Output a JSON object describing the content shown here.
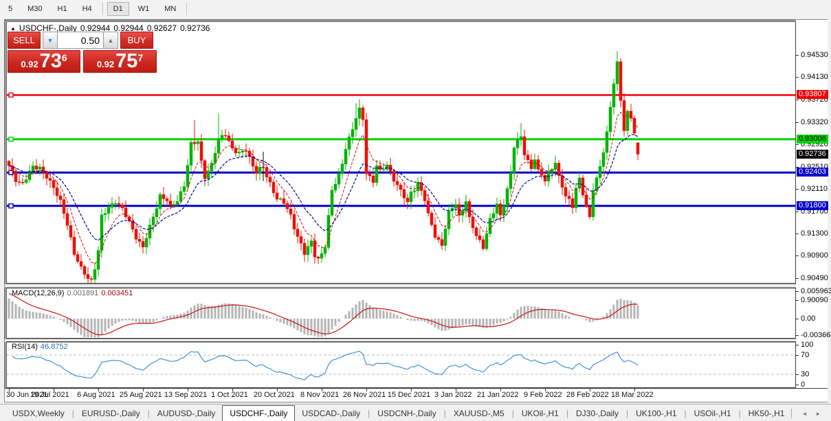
{
  "toolbar": {
    "items": [
      "5",
      "M30",
      "H1",
      "H4",
      "D1",
      "W1",
      "MN"
    ],
    "active": "D1"
  },
  "window": {
    "title": {
      "collapse_icon": "▲",
      "symbol": "USDCHF-,Daily",
      "open": "0.92944",
      "high": "0.92944",
      "low": "0.92627",
      "close": "0.92736"
    },
    "trade_panel": {
      "sell_label": "SELL",
      "buy_label": "BUY",
      "volume": "0.50",
      "down_arrow": "▼",
      "up_arrow": "▲",
      "sell_price_prefix": "0.92",
      "sell_price_big": "73",
      "sell_price_sup": "6",
      "buy_price_prefix": "0.92",
      "buy_price_big": "75",
      "buy_price_sup": "7"
    }
  },
  "chart_data": {
    "type": "candlestick",
    "symbol": "USDCHF-",
    "timeframe": "Daily",
    "last_candle": {
      "open": 0.92944,
      "high": 0.92944,
      "low": 0.92627,
      "close": 0.92736
    },
    "candle_count": 184,
    "candles_per_x_tick": 13,
    "x_ticks": [
      "30 Jun 2021",
      "19 Jul 2021",
      "6 Aug 2021",
      "25 Aug 2021",
      "13 Sep 2021",
      "1 Oct 2021",
      "20 Oct 2021",
      "8 Nov 2021",
      "26 Nov 2021",
      "15 Dec 2021",
      "3 Jan 2022",
      "21 Jan 2022",
      "9 Feb 2022",
      "28 Feb 2022",
      "18 Mar 2022"
    ],
    "y_ticks": [
      0.9453,
      0.9413,
      0.9372,
      0.9332,
      0.9292,
      0.9251,
      0.9211,
      0.917,
      0.913,
      0.909,
      0.9049,
      0.9009
    ],
    "y_tick_labels": [
      "0.94530",
      "0.94130",
      "0.93720",
      "0.93320",
      "0.92920",
      "0.92510",
      "0.92110",
      "0.91700",
      "0.91300",
      "0.90900",
      "0.90490",
      "0.90090"
    ],
    "levels": [
      {
        "price": 0.93807,
        "label": "0.93807",
        "color": "#ee0000",
        "text_color": "#ffffff",
        "width": 2.5
      },
      {
        "price": 0.93006,
        "label": "0.93006",
        "color": "#00d200",
        "text_color": "#000000",
        "width": 3
      },
      {
        "price": 0.92403,
        "label": "0.92403",
        "color": "#0000cc",
        "text_color": "#ffffff",
        "width": 3
      },
      {
        "price": 0.918,
        "label": "0.91800",
        "color": "#0000cc",
        "text_color": "#ffffff",
        "width": 3
      }
    ],
    "current_price": {
      "value": 0.92736,
      "label": "0.92736",
      "color": "#000000",
      "text_color": "#ffffff"
    },
    "up_color": "#00b400",
    "down_color": "#ee1005",
    "ma_fast": {
      "period": 7,
      "color": "#cc1111"
    },
    "ma_slow": {
      "period": 16,
      "color": "#000099"
    },
    "price_path": [
      [
        0,
        0.925
      ],
      [
        2,
        0.9228
      ],
      [
        4,
        0.9222
      ],
      [
        7,
        0.9248
      ],
      [
        9,
        0.925
      ],
      [
        11,
        0.9235
      ],
      [
        13,
        0.921
      ],
      [
        15,
        0.9188
      ],
      [
        17,
        0.915
      ],
      [
        19,
        0.9092
      ],
      [
        21,
        0.9065
      ],
      [
        23,
        0.9052
      ],
      [
        24,
        0.9046
      ],
      [
        25,
        0.9068
      ],
      [
        26,
        0.9098
      ],
      [
        27,
        0.9158
      ],
      [
        29,
        0.9178
      ],
      [
        31,
        0.919
      ],
      [
        33,
        0.9172
      ],
      [
        35,
        0.915
      ],
      [
        37,
        0.9126
      ],
      [
        39,
        0.9104
      ],
      [
        41,
        0.914
      ],
      [
        43,
        0.918
      ],
      [
        44,
        0.92
      ],
      [
        46,
        0.919
      ],
      [
        47,
        0.9175
      ],
      [
        49,
        0.919
      ],
      [
        51,
        0.922
      ],
      [
        53,
        0.929
      ],
      [
        55,
        0.9295
      ],
      [
        56,
        0.926
      ],
      [
        57,
        0.9235
      ],
      [
        59,
        0.9255
      ],
      [
        61,
        0.9298
      ],
      [
        63,
        0.9312
      ],
      [
        65,
        0.9285
      ],
      [
        67,
        0.9272
      ],
      [
        69,
        0.9282
      ],
      [
        71,
        0.9255
      ],
      [
        72,
        0.9243
      ],
      [
        74,
        0.9248
      ],
      [
        75,
        0.9232
      ],
      [
        77,
        0.9208
      ],
      [
        78,
        0.9196
      ],
      [
        80,
        0.9185
      ],
      [
        82,
        0.916
      ],
      [
        83,
        0.9142
      ],
      [
        85,
        0.9112
      ],
      [
        86,
        0.9095
      ],
      [
        88,
        0.9112
      ],
      [
        89,
        0.909
      ],
      [
        90,
        0.9085
      ],
      [
        91,
        0.9095
      ],
      [
        92,
        0.911
      ],
      [
        93,
        0.916
      ],
      [
        94,
        0.9205
      ],
      [
        96,
        0.9235
      ],
      [
        97,
        0.9258
      ],
      [
        98,
        0.9288
      ],
      [
        100,
        0.9318
      ],
      [
        101,
        0.9338
      ],
      [
        102,
        0.9352
      ],
      [
        103,
        0.9338
      ],
      [
        104,
        0.9242
      ],
      [
        106,
        0.9225
      ],
      [
        107,
        0.9252
      ],
      [
        108,
        0.924
      ],
      [
        110,
        0.9255
      ],
      [
        112,
        0.923
      ],
      [
        114,
        0.9205
      ],
      [
        116,
        0.9185
      ],
      [
        117,
        0.9205
      ],
      [
        119,
        0.9222
      ],
      [
        121,
        0.919
      ],
      [
        122,
        0.9162
      ],
      [
        124,
        0.9128
      ],
      [
        126,
        0.911
      ],
      [
        127,
        0.914
      ],
      [
        128,
        0.9165
      ],
      [
        130,
        0.9185
      ],
      [
        131,
        0.9162
      ],
      [
        133,
        0.919
      ],
      [
        134,
        0.9155
      ],
      [
        136,
        0.9125
      ],
      [
        138,
        0.9108
      ],
      [
        139,
        0.9132
      ],
      [
        140,
        0.9155
      ],
      [
        142,
        0.918
      ],
      [
        143,
        0.916
      ],
      [
        144,
        0.9185
      ],
      [
        146,
        0.924
      ],
      [
        147,
        0.9288
      ],
      [
        149,
        0.9302
      ],
      [
        150,
        0.9275
      ],
      [
        152,
        0.925
      ],
      [
        153,
        0.9268
      ],
      [
        154,
        0.9242
      ],
      [
        156,
        0.9225
      ],
      [
        158,
        0.925
      ],
      [
        159,
        0.9262
      ],
      [
        160,
        0.9232
      ],
      [
        162,
        0.9196
      ],
      [
        164,
        0.918
      ],
      [
        165,
        0.9215
      ],
      [
        166,
        0.923
      ],
      [
        168,
        0.9176
      ],
      [
        169,
        0.9155
      ],
      [
        170,
        0.921
      ],
      [
        172,
        0.9252
      ],
      [
        173,
        0.9282
      ],
      [
        174,
        0.9312
      ],
      [
        175,
        0.9355
      ],
      [
        176,
        0.9402
      ],
      [
        177,
        0.9438
      ],
      [
        178,
        0.9372
      ],
      [
        179,
        0.9322
      ],
      [
        180,
        0.935
      ],
      [
        181,
        0.9338
      ],
      [
        182,
        0.9312
      ],
      [
        183,
        0.92736
      ]
    ],
    "high_overrides": {
      "54": 0.9335,
      "61": 0.9347,
      "101": 0.9366,
      "102": 0.9373,
      "149": 0.933,
      "177": 0.946
    },
    "low_overrides": {
      "24": 0.9032
    },
    "annotation_vline": {
      "index": 74,
      "price_top": 0.9278,
      "price_bottom": 0.9225,
      "color": "#000000"
    }
  },
  "macd": {
    "label": "MACD(12,26,9)",
    "value_main": "0.001891",
    "value_signal": "0.003451",
    "params": [
      12,
      26,
      9
    ],
    "y_ticks": [
      0.005963,
      0.0,
      -0.003664
    ],
    "y_tick_labels": [
      "0.005963",
      "0.00",
      "-0.003664"
    ],
    "histogram_color": "#b4b4b4",
    "signal_color": "#cc1111"
  },
  "rsi": {
    "label": "RSI(14)",
    "value": "46.8752",
    "period": 14,
    "y_tick_labels": [
      "100",
      "70",
      "30",
      "0"
    ],
    "y_ticks": [
      100,
      70,
      30,
      0
    ],
    "levels": [
      70,
      30
    ],
    "line_color": "#4192d9",
    "level_color": "#bdbdbd"
  },
  "tabs": {
    "items": [
      "USDX,Weekly",
      "EURUSD-,Daily",
      "AUDUSD-,Daily",
      "USDCHF-,Daily",
      "USDCAD-,Daily",
      "USDCNH-,Daily",
      "XAUUSD-,M5",
      "UKOil-,H1",
      "DJ30-,Daily",
      "UK100-,H1",
      "USOil-,H1",
      "HK50-,H1"
    ],
    "active": "USDCHF-,Daily",
    "scroll_left": "◄",
    "scroll_right": "►"
  }
}
